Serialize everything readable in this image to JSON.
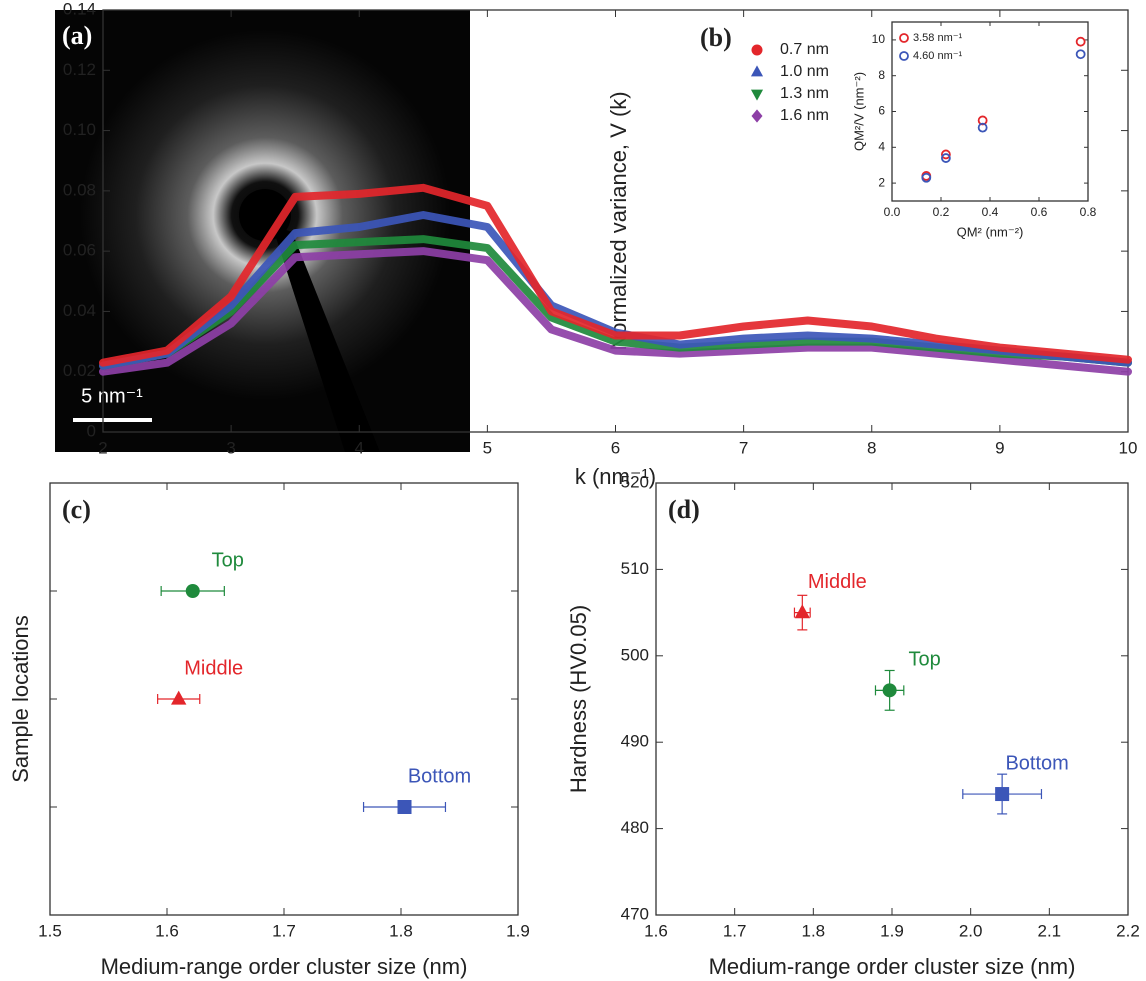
{
  "chart_data": [
    {
      "type": "image",
      "label": "(a)",
      "scale_bar": "5 nm⁻¹"
    },
    {
      "type": "line",
      "label": "(b)",
      "xlabel": "k (nm⁻¹)",
      "ylabel": "Normalized variance, V (k)",
      "x": [
        2,
        2.5,
        3,
        3.5,
        4,
        4.5,
        5,
        5.5,
        6,
        6.5,
        7,
        7.5,
        8,
        8.5,
        9,
        9.5,
        10
      ],
      "xlim": [
        2,
        10
      ],
      "xticks": [
        2,
        3,
        4,
        5,
        6,
        7,
        8,
        9,
        10
      ],
      "ylim": [
        0,
        0.14
      ],
      "yticks": [
        0,
        0.02,
        0.04,
        0.06,
        0.08,
        {
          "value": 0.1,
          "label": "0.10"
        },
        0.12,
        0.14
      ],
      "series": [
        {
          "name": "0.7 nm",
          "color": "#e3262b",
          "marker": "circle",
          "values": [
            0.023,
            0.027,
            0.045,
            0.078,
            0.079,
            0.081,
            0.075,
            0.04,
            0.032,
            0.032,
            0.035,
            0.037,
            0.035,
            0.031,
            0.028,
            0.026,
            0.024
          ]
        },
        {
          "name": "1.0 nm",
          "color": "#3c56b8",
          "marker": "triangle-up",
          "values": [
            0.022,
            0.026,
            0.042,
            0.066,
            0.068,
            0.072,
            0.068,
            0.042,
            0.033,
            0.029,
            0.031,
            0.032,
            0.031,
            0.029,
            0.027,
            0.025,
            0.023
          ]
        },
        {
          "name": "1.3 nm",
          "color": "#1f8a3c",
          "marker": "triangle-down",
          "values": [
            0.022,
            0.026,
            0.04,
            0.062,
            0.063,
            0.064,
            0.061,
            0.038,
            0.03,
            0.028,
            0.029,
            0.03,
            0.03,
            0.028,
            0.026,
            0.025,
            0.023
          ]
        },
        {
          "name": "1.6 nm",
          "color": "#8d3fa6",
          "marker": "diamond",
          "values": [
            0.02,
            0.023,
            0.036,
            0.058,
            0.059,
            0.06,
            0.057,
            0.034,
            0.027,
            0.026,
            0.027,
            0.028,
            0.028,
            0.026,
            0.024,
            0.022,
            0.02
          ]
        }
      ],
      "inset": {
        "type": "scatter",
        "xlabel": "QM² (nm⁻²)",
        "ylabel": "QM²/V (nm⁻²)",
        "xlim": [
          0,
          0.8
        ],
        "xticks": [
          {
            "value": 0,
            "label": "0.0"
          },
          0.2,
          0.4,
          0.6,
          0.8
        ],
        "ylim": [
          1,
          11
        ],
        "yticks": [
          2,
          4,
          6,
          8,
          10
        ],
        "series": [
          {
            "name": "3.58 nm⁻¹",
            "color": "#e3262b",
            "x": [
              0.14,
              0.22,
              0.37,
              0.77
            ],
            "values": [
              2.4,
              3.6,
              5.5,
              9.9
            ]
          },
          {
            "name": "4.60 nm⁻¹",
            "color": "#3c56b8",
            "x": [
              0.14,
              0.22,
              0.37,
              0.77
            ],
            "values": [
              2.3,
              3.4,
              5.1,
              9.2
            ]
          }
        ]
      }
    },
    {
      "type": "scatter",
      "label": "(c)",
      "xlabel": "Medium-range order cluster size (nm)",
      "ylabel": "Sample locations",
      "xlim": [
        1.5,
        1.9
      ],
      "xticks": [
        1.5,
        1.6,
        1.7,
        1.8,
        1.9
      ],
      "series": [
        {
          "name": "Bottom",
          "color": "#3c56b8",
          "marker": "square",
          "x": [
            1.803
          ],
          "xerr": [
            0.035
          ]
        },
        {
          "name": "Middle",
          "color": "#e3262b",
          "marker": "triangle-up",
          "x": [
            1.61
          ],
          "xerr": [
            0.018
          ]
        },
        {
          "name": "Top",
          "color": "#1f8a3c",
          "marker": "circle",
          "x": [
            1.622
          ],
          "xerr": [
            0.027
          ]
        }
      ]
    },
    {
      "type": "scatter",
      "label": "(d)",
      "xlabel": "Medium-range order cluster size (nm)",
      "ylabel": "Hardness (HV0.05)",
      "xlim": [
        1.6,
        2.2
      ],
      "xticks": [
        1.6,
        1.7,
        1.8,
        1.9,
        {
          "value": 2,
          "label": "2.0"
        },
        2.1,
        2.2
      ],
      "ylim": [
        470,
        520
      ],
      "yticks": [
        470,
        480,
        490,
        500,
        510,
        520
      ],
      "series": [
        {
          "name": "Middle",
          "color": "#e3262b",
          "marker": "triangle-up",
          "x": [
            1.786
          ],
          "xerr": [
            0.01
          ],
          "values": [
            505
          ],
          "yerr": [
            2
          ]
        },
        {
          "name": "Top",
          "color": "#1f8a3c",
          "marker": "circle",
          "x": [
            1.897
          ],
          "xerr": [
            0.018
          ],
          "values": [
            496
          ],
          "yerr": [
            2.3
          ]
        },
        {
          "name": "Bottom",
          "color": "#3c56b8",
          "marker": "square",
          "x": [
            2.04
          ],
          "xerr": [
            0.05
          ],
          "values": [
            484
          ],
          "yerr": [
            2.3
          ]
        }
      ]
    }
  ]
}
